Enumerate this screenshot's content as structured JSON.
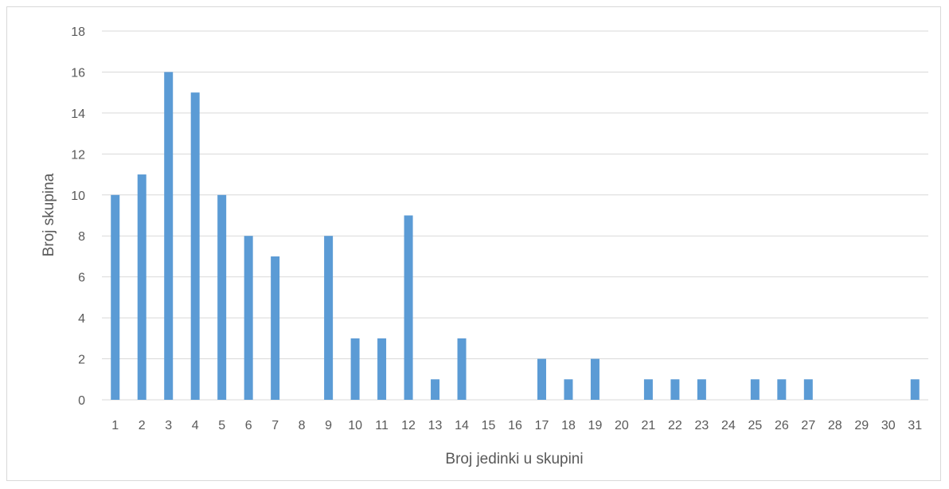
{
  "chart_data": {
    "type": "bar",
    "title": "",
    "xlabel": "Broj jedinki u skupini",
    "ylabel": "Broj skupina",
    "ylim": [
      0,
      18
    ],
    "yticks": [
      "0",
      "2",
      "4",
      "6",
      "8",
      "10",
      "12",
      "14",
      "16",
      "18"
    ],
    "grid": true,
    "categories": [
      "1",
      "2",
      "3",
      "4",
      "5",
      "6",
      "7",
      "8",
      "9",
      "10",
      "11",
      "12",
      "13",
      "14",
      "15",
      "16",
      "17",
      "18",
      "19",
      "20",
      "21",
      "22",
      "23",
      "24",
      "25",
      "26",
      "27",
      "28",
      "29",
      "30",
      "31"
    ],
    "values": [
      10,
      11,
      16,
      15,
      10,
      8,
      7,
      0,
      8,
      3,
      3,
      9,
      1,
      3,
      0,
      0,
      2,
      1,
      2,
      0,
      1,
      1,
      1,
      0,
      1,
      1,
      1,
      0,
      0,
      0,
      1
    ],
    "colors": {
      "bar": "#5b9bd5",
      "grid": "#d9d9d9",
      "text": "#595959"
    }
  }
}
